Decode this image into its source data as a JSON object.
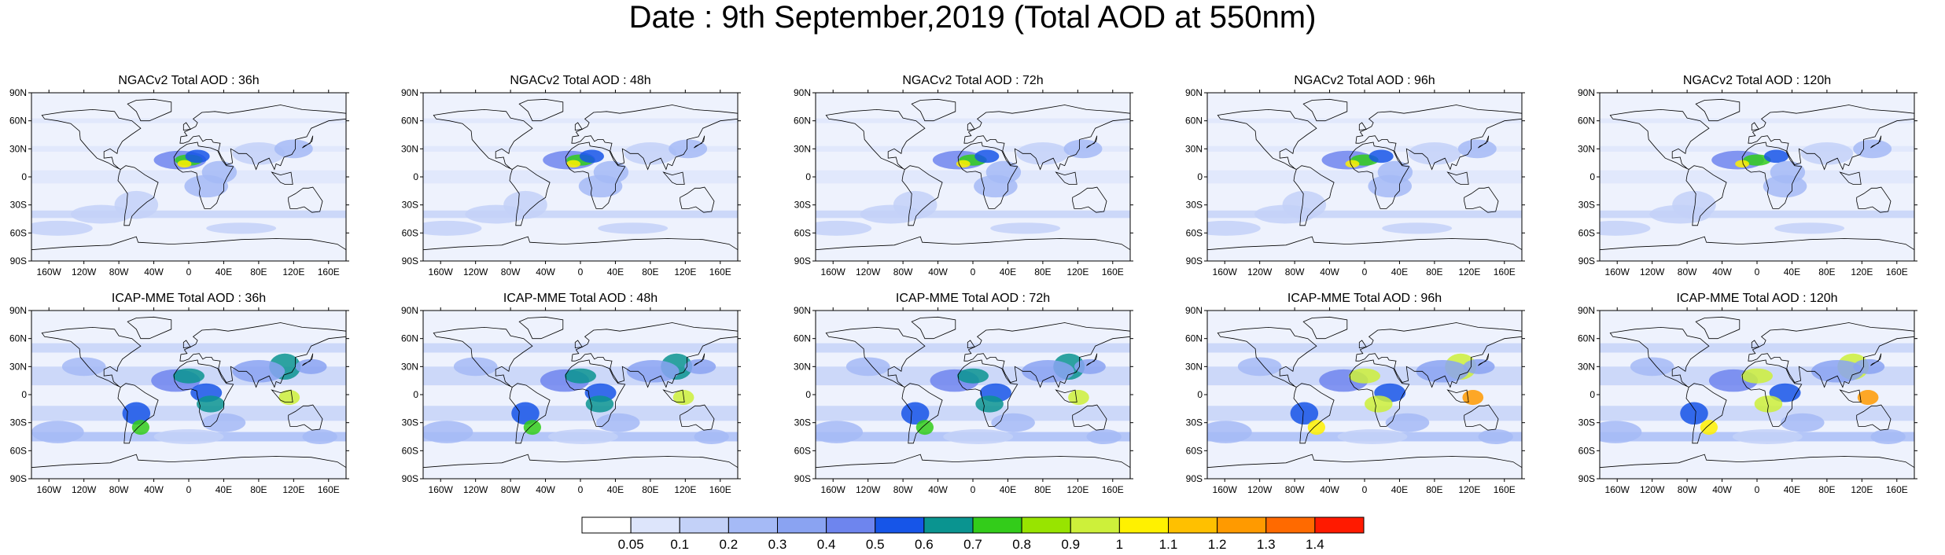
{
  "title": "Date : 9th September,2019 (Total AOD at 550nm)",
  "lat_labels": [
    "90N",
    "60N",
    "30N",
    "0",
    "30S",
    "60S",
    "90S"
  ],
  "lon_labels": [
    "160W",
    "120W",
    "80W",
    "40W",
    "0",
    "40E",
    "80E",
    "120E",
    "160E"
  ],
  "rows": [
    {
      "model": "NGACv2",
      "panels": [
        {
          "title": "NGACv2 Total AOD : 36h"
        },
        {
          "title": "NGACv2 Total AOD : 48h"
        },
        {
          "title": "NGACv2 Total AOD : 72h"
        },
        {
          "title": "NGACv2 Total AOD : 96h"
        },
        {
          "title": "NGACv2 Total AOD : 120h"
        }
      ]
    },
    {
      "model": "ICAP-MME",
      "panels": [
        {
          "title": "ICAP-MME Total AOD : 36h"
        },
        {
          "title": "ICAP-MME Total AOD : 48h"
        },
        {
          "title": "ICAP-MME Total AOD : 72h"
        },
        {
          "title": "ICAP-MME Total AOD : 96h"
        },
        {
          "title": "ICAP-MME Total AOD : 120h"
        }
      ]
    }
  ],
  "colorbar": {
    "labels": [
      "0.05",
      "0.1",
      "0.2",
      "0.3",
      "0.4",
      "0.5",
      "0.6",
      "0.7",
      "0.8",
      "0.9",
      "1",
      "1.1",
      "1.2",
      "1.3",
      "1.4"
    ],
    "colors": [
      "#ffffff",
      "#dde5fb",
      "#c3d1f8",
      "#a5baf6",
      "#8aa3f2",
      "#6e85ee",
      "#1655e8",
      "#0a9490",
      "#33cc1a",
      "#98e400",
      "#cdf03a",
      "#fff100",
      "#ffc000",
      "#ff9a00",
      "#ff6a00",
      "#ff1a00"
    ]
  },
  "map_colors": {
    "ocean_low": "#eef2fd",
    "coast": "#000000"
  }
}
